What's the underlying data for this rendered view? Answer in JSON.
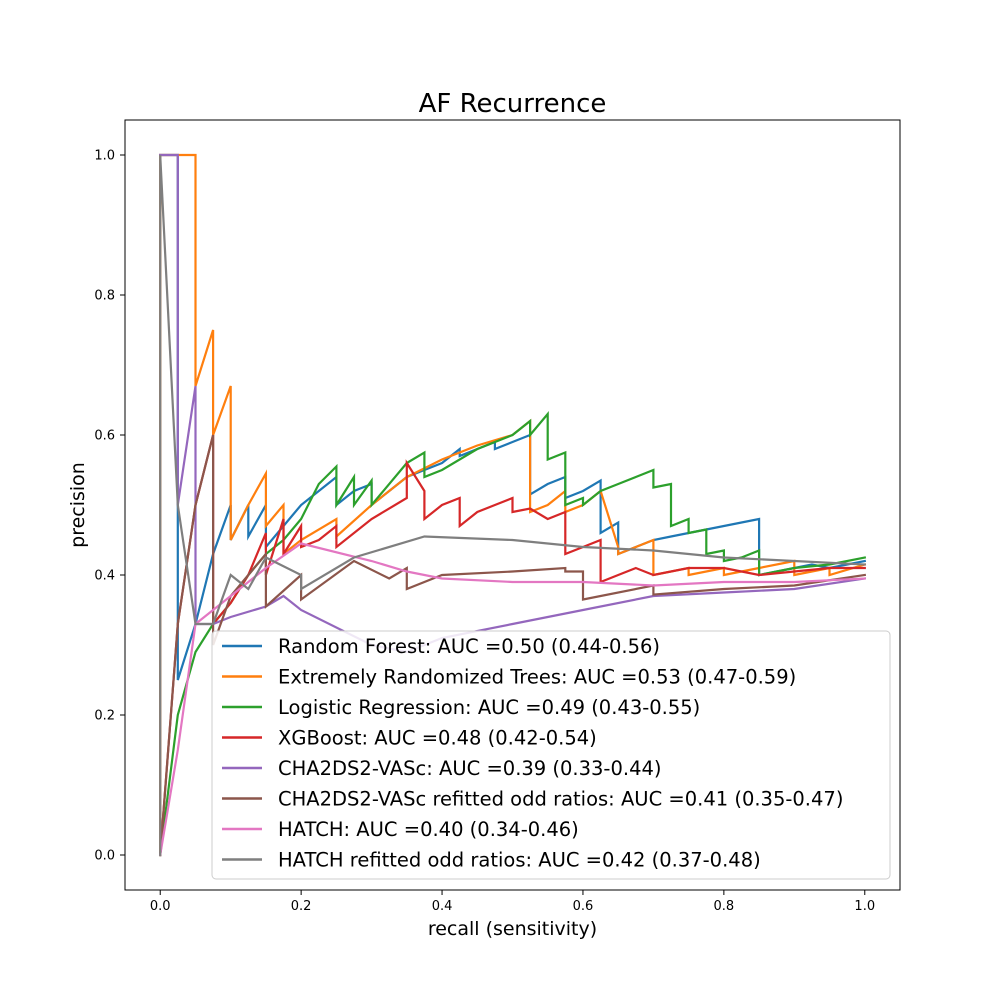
{
  "chart_data": {
    "type": "line",
    "title": "AF Recurrence",
    "xlabel": "recall (sensitivity)",
    "ylabel": "precision",
    "xlim": [
      -0.05,
      1.05
    ],
    "ylim": [
      -0.05,
      1.05
    ],
    "xticks": [
      0.0,
      0.2,
      0.4,
      0.6,
      0.8,
      1.0
    ],
    "xtick_labels": [
      "0.0",
      "0.2",
      "0.4",
      "0.6",
      "0.8",
      "1.0"
    ],
    "yticks": [
      0.0,
      0.2,
      0.4,
      0.6,
      0.8,
      1.0
    ],
    "ytick_labels": [
      "0.0",
      "0.2",
      "0.4",
      "0.6",
      "0.8",
      "1.0"
    ],
    "grid": false,
    "legend_position": "lower-right",
    "series": [
      {
        "name": "Random Forest: AUC =0.50 (0.44-0.56)",
        "color": "#1f77b4",
        "x": [
          0,
          0,
          0.025,
          0.025,
          0.05,
          0.05,
          0.075,
          0.075,
          0.1,
          0.1,
          0.125,
          0.125,
          0.15,
          0.15,
          0.175,
          0.2,
          0.225,
          0.25,
          0.25,
          0.275,
          0.3,
          0.3,
          0.325,
          0.35,
          0.375,
          0.4,
          0.425,
          0.425,
          0.45,
          0.475,
          0.475,
          0.5,
          0.525,
          0.525,
          0.55,
          0.575,
          0.575,
          0.6,
          0.625,
          0.625,
          0.65,
          0.65,
          0.675,
          0.7,
          0.725,
          0.75,
          0.775,
          0.8,
          0.825,
          0.85,
          0.85,
          0.875,
          0.9,
          0.925,
          0.95,
          0.975,
          1.0
        ],
        "y": [
          0,
          1.0,
          1.0,
          0.25,
          0.33,
          0.33,
          0.43,
          0.43,
          0.5,
          0.45,
          0.5,
          0.455,
          0.5,
          0.44,
          0.47,
          0.5,
          0.52,
          0.54,
          0.5,
          0.52,
          0.53,
          0.5,
          0.52,
          0.54,
          0.55,
          0.56,
          0.58,
          0.57,
          0.58,
          0.59,
          0.58,
          0.59,
          0.6,
          0.515,
          0.53,
          0.54,
          0.51,
          0.52,
          0.535,
          0.46,
          0.475,
          0.43,
          0.44,
          0.45,
          0.455,
          0.46,
          0.465,
          0.47,
          0.475,
          0.48,
          0.4,
          0.405,
          0.41,
          0.415,
          0.41,
          0.415,
          0.42
        ]
      },
      {
        "name": "Extremely Randomized Trees: AUC =0.53 (0.47-0.59)",
        "color": "#ff7f0e",
        "x": [
          0,
          0,
          0.05,
          0.05,
          0.075,
          0.075,
          0.1,
          0.1,
          0.125,
          0.15,
          0.15,
          0.175,
          0.175,
          0.2,
          0.25,
          0.25,
          0.3,
          0.35,
          0.4,
          0.45,
          0.5,
          0.5,
          0.525,
          0.525,
          0.55,
          0.575,
          0.575,
          0.6,
          0.625,
          0.65,
          0.65,
          0.675,
          0.7,
          0.7,
          0.75,
          0.75,
          0.8,
          0.8,
          0.85,
          0.9,
          0.9,
          0.95,
          0.95,
          1.0
        ],
        "y": [
          0,
          1.0,
          1.0,
          0.67,
          0.75,
          0.6,
          0.67,
          0.45,
          0.5,
          0.545,
          0.47,
          0.5,
          0.43,
          0.45,
          0.48,
          0.455,
          0.5,
          0.54,
          0.565,
          0.585,
          0.6,
          0.6,
          0.62,
          0.49,
          0.5,
          0.52,
          0.49,
          0.5,
          0.52,
          0.44,
          0.43,
          0.44,
          0.45,
          0.4,
          0.41,
          0.4,
          0.41,
          0.4,
          0.41,
          0.42,
          0.4,
          0.41,
          0.4,
          0.415
        ]
      },
      {
        "name": "Logistic Regression: AUC =0.49 (0.43-0.55)",
        "color": "#2ca02c",
        "x": [
          0,
          0.025,
          0.05,
          0.075,
          0.1,
          0.125,
          0.15,
          0.175,
          0.2,
          0.225,
          0.25,
          0.25,
          0.275,
          0.275,
          0.3,
          0.3,
          0.35,
          0.375,
          0.375,
          0.4,
          0.45,
          0.5,
          0.525,
          0.525,
          0.55,
          0.55,
          0.575,
          0.575,
          0.6,
          0.6,
          0.625,
          0.65,
          0.675,
          0.7,
          0.7,
          0.725,
          0.725,
          0.75,
          0.75,
          0.775,
          0.775,
          0.8,
          0.8,
          0.825,
          0.85,
          0.85,
          0.9,
          0.95,
          1.0
        ],
        "y": [
          0,
          0.2,
          0.29,
          0.33,
          0.36,
          0.4,
          0.43,
          0.45,
          0.48,
          0.53,
          0.555,
          0.5,
          0.54,
          0.5,
          0.535,
          0.5,
          0.56,
          0.575,
          0.54,
          0.55,
          0.58,
          0.6,
          0.62,
          0.6,
          0.63,
          0.565,
          0.575,
          0.5,
          0.51,
          0.5,
          0.52,
          0.53,
          0.54,
          0.55,
          0.525,
          0.53,
          0.47,
          0.48,
          0.46,
          0.465,
          0.43,
          0.435,
          0.42,
          0.425,
          0.435,
          0.4,
          0.41,
          0.415,
          0.425
        ]
      },
      {
        "name": "XGBoost: AUC =0.48 (0.42-0.54)",
        "color": "#d62728",
        "x": [
          0,
          0.025,
          0.05,
          0.075,
          0.075,
          0.1,
          0.1,
          0.125,
          0.15,
          0.15,
          0.175,
          0.175,
          0.2,
          0.2,
          0.225,
          0.25,
          0.25,
          0.3,
          0.35,
          0.35,
          0.375,
          0.375,
          0.4,
          0.4,
          0.425,
          0.425,
          0.45,
          0.45,
          0.475,
          0.475,
          0.5,
          0.5,
          0.525,
          0.55,
          0.575,
          0.575,
          0.6,
          0.625,
          0.625,
          0.65,
          0.675,
          0.7,
          0.75,
          0.8,
          0.85,
          0.9,
          0.95,
          1.0
        ],
        "y": [
          0,
          0.33,
          0.5,
          0.6,
          0.33,
          0.36,
          0.36,
          0.4,
          0.46,
          0.4,
          0.48,
          0.43,
          0.47,
          0.44,
          0.45,
          0.47,
          0.44,
          0.48,
          0.51,
          0.56,
          0.52,
          0.48,
          0.5,
          0.5,
          0.51,
          0.47,
          0.49,
          0.49,
          0.5,
          0.5,
          0.51,
          0.49,
          0.495,
          0.48,
          0.49,
          0.43,
          0.44,
          0.45,
          0.39,
          0.4,
          0.41,
          0.4,
          0.41,
          0.41,
          0.4,
          0.405,
          0.41,
          0.41
        ]
      },
      {
        "name": "CHA2DS2-VASc: AUC =0.39 (0.33-0.44)",
        "color": "#9467bd",
        "x": [
          0,
          0.025,
          0.025,
          0.05,
          0.05,
          0.075,
          0.1,
          0.15,
          0.175,
          0.2,
          0.3,
          0.35,
          0.4,
          0.5,
          0.6,
          0.7,
          0.8,
          0.9,
          1.0
        ],
        "y": [
          1.0,
          1.0,
          0.5,
          0.67,
          0.33,
          0.33,
          0.34,
          0.355,
          0.37,
          0.35,
          0.3,
          0.29,
          0.31,
          0.33,
          0.35,
          0.37,
          0.375,
          0.38,
          0.395
        ]
      },
      {
        "name": "CHA2DS2-VASc refitted odd ratios: AUC =0.41 (0.35-0.47)",
        "color": "#8c564b",
        "x": [
          0,
          0.025,
          0.05,
          0.075,
          0.075,
          0.1,
          0.15,
          0.15,
          0.2,
          0.2,
          0.275,
          0.325,
          0.35,
          0.35,
          0.4,
          0.5,
          0.575,
          0.575,
          0.6,
          0.6,
          0.7,
          0.7,
          0.8,
          0.9,
          1.0
        ],
        "y": [
          0,
          0.33,
          0.5,
          0.6,
          0.3,
          0.37,
          0.43,
          0.355,
          0.4,
          0.365,
          0.42,
          0.395,
          0.41,
          0.38,
          0.4,
          0.405,
          0.41,
          0.405,
          0.405,
          0.365,
          0.385,
          0.372,
          0.38,
          0.385,
          0.4
        ]
      },
      {
        "name": "HATCH: AUC =0.40 (0.34-0.46)",
        "color": "#e377c2",
        "x": [
          0,
          0.025,
          0.05,
          0.1,
          0.15,
          0.2,
          0.3,
          0.35,
          0.4,
          0.5,
          0.6,
          0.7,
          0.8,
          0.9,
          1.0
        ],
        "y": [
          0,
          0.15,
          0.33,
          0.37,
          0.41,
          0.445,
          0.42,
          0.405,
          0.395,
          0.39,
          0.39,
          0.385,
          0.39,
          0.39,
          0.395
        ]
      },
      {
        "name": "HATCH refitted odd ratios: AUC =0.42 (0.37-0.48)",
        "color": "#7f7f7f",
        "x": [
          0,
          0,
          0.025,
          0.05,
          0.075,
          0.1,
          0.125,
          0.15,
          0.2,
          0.2,
          0.275,
          0.375,
          0.5,
          0.6,
          0.7,
          0.8,
          0.9,
          1.0
        ],
        "y": [
          0,
          1.0,
          0.5,
          0.33,
          0.33,
          0.4,
          0.38,
          0.425,
          0.4,
          0.38,
          0.425,
          0.455,
          0.45,
          0.44,
          0.435,
          0.425,
          0.42,
          0.415
        ]
      }
    ]
  }
}
